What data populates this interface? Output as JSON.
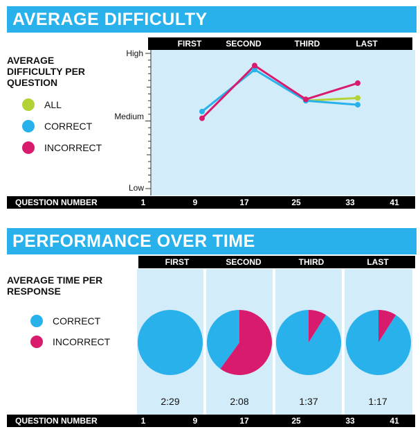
{
  "difficulty": {
    "title": "AVERAGE DIFFICULTY",
    "subtitle_lines": [
      "AVERAGE",
      "DIFFICULTY PER",
      "QUESTION"
    ],
    "y_labels": {
      "high": "High",
      "medium": "Medium",
      "low": "Low"
    }
  },
  "performance": {
    "title": "PERFORMANCE OVER TIME",
    "subtitle_lines": [
      "AVERAGE TIME PER",
      "RESPONSE"
    ]
  },
  "legend_difficulty": [
    {
      "label": "ALL",
      "color": "#b2d235"
    },
    {
      "label": "CORRECT",
      "color": "#29b1ec"
    },
    {
      "label": "INCORRECT",
      "color": "#d81b6c"
    }
  ],
  "legend_performance": [
    {
      "label": "CORRECT",
      "color": "#29b1ec"
    },
    {
      "label": "INCORRECT",
      "color": "#d81b6c"
    }
  ],
  "quarters": [
    "FIRST",
    "SECOND",
    "THIRD",
    "LAST"
  ],
  "question_number_label": "QUESTION NUMBER",
  "question_numbers": [
    "1",
    "9",
    "17",
    "25",
    "33",
    "41"
  ],
  "chart_data": [
    {
      "type": "line",
      "title": "AVERAGE DIFFICULTY",
      "categories": [
        "FIRST",
        "SECOND",
        "THIRD",
        "LAST"
      ],
      "ylabel": "AVERAGE DIFFICULTY PER QUESTION",
      "y_scale": "0 = Low, 0.5 = Medium, 1 = High",
      "ylim": [
        0,
        1
      ],
      "series": [
        {
          "name": "ALL",
          "color": "#b2d235",
          "values": [
            null,
            null,
            0.65,
            0.67
          ]
        },
        {
          "name": "CORRECT",
          "color": "#29b1ec",
          "values": [
            0.57,
            0.88,
            0.65,
            0.62
          ]
        },
        {
          "name": "INCORRECT",
          "color": "#d81b6c",
          "values": [
            0.52,
            0.91,
            0.66,
            0.78
          ]
        }
      ]
    },
    {
      "type": "pie",
      "title": "PERFORMANCE OVER TIME",
      "categories": [
        "FIRST",
        "SECOND",
        "THIRD",
        "LAST"
      ],
      "series_names": [
        "CORRECT",
        "INCORRECT"
      ],
      "pies": [
        {
          "quarter": "FIRST",
          "time": "2:29",
          "correct": 1.0,
          "incorrect": 0.0
        },
        {
          "quarter": "SECOND",
          "time": "2:08",
          "correct": 0.4,
          "incorrect": 0.6
        },
        {
          "quarter": "THIRD",
          "time": "1:37",
          "correct": 0.91,
          "incorrect": 0.09
        },
        {
          "quarter": "LAST",
          "time": "1:17",
          "correct": 0.91,
          "incorrect": 0.09
        }
      ]
    }
  ]
}
